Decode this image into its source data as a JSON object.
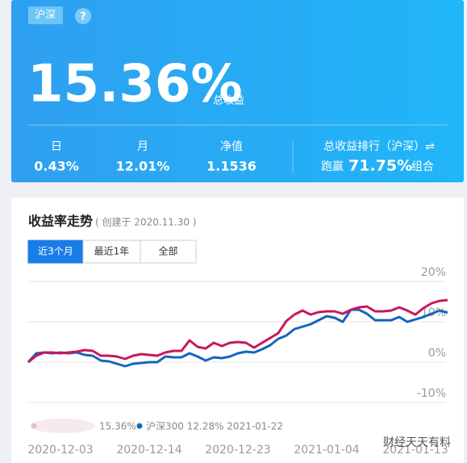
{
  "header": {
    "tag": "沪深",
    "help": "?",
    "total_return": "15.36%",
    "total_return_label": "总收益",
    "stats": [
      {
        "label": "日",
        "value": "0.43%"
      },
      {
        "label": "月",
        "value": "12.01%"
      },
      {
        "label": "净值",
        "value": "1.1536"
      }
    ],
    "rank": {
      "label": "总收益排行（沪深）⇌",
      "prefix": "跑赢",
      "value": "71.75%",
      "suffix": "组合"
    }
  },
  "section": {
    "title": "收益率走势",
    "subtitle": "( 创建于 2020.11.30 )",
    "tabs": [
      {
        "label": "近3个月",
        "selected": true
      },
      {
        "label": "最近1年",
        "selected": false
      },
      {
        "label": "全部",
        "selected": false
      }
    ]
  },
  "chart_data": {
    "type": "line",
    "categories": [
      null,
      null,
      null,
      null,
      "2020-12-03",
      null,
      null,
      null,
      null,
      null,
      null,
      null,
      null,
      null,
      null,
      "2020-12-14",
      null,
      null,
      null,
      null,
      null,
      null,
      null,
      null,
      null,
      null,
      "2020-12-23",
      null,
      null,
      null,
      null,
      null,
      null,
      null,
      null,
      null,
      null,
      "2021-01-04",
      null,
      null,
      null,
      null,
      null,
      null,
      null,
      null,
      null,
      null,
      "2021-01-13",
      null,
      null,
      null,
      null
    ],
    "series": [
      {
        "color": "#c8175d",
        "values": [
          0.0,
          1.6,
          2.4,
          2.4,
          2.2,
          2.4,
          2.6,
          3.0,
          2.8,
          1.6,
          1.6,
          1.4,
          0.8,
          1.6,
          2.0,
          1.8,
          1.6,
          2.4,
          2.8,
          2.8,
          5.4,
          3.8,
          3.4,
          4.8,
          4.0,
          4.8,
          5.0,
          4.8,
          3.6,
          4.8,
          6.0,
          7.2,
          10.2,
          11.8,
          12.8,
          11.8,
          12.4,
          12.6,
          12.6,
          12.0,
          13.0,
          13.6,
          13.8,
          12.6,
          12.6,
          12.8,
          13.6,
          12.8,
          11.8,
          13.4,
          14.6,
          15.2,
          15.4
        ]
      },
      {
        "name": "沪深300",
        "color": "#1565c0",
        "values": [
          0.0,
          2.2,
          2.4,
          2.2,
          2.4,
          2.2,
          2.4,
          1.8,
          1.6,
          0.4,
          0.2,
          -0.4,
          -1.0,
          -0.4,
          -0.2,
          0.0,
          0.0,
          1.4,
          1.2,
          1.2,
          2.2,
          1.4,
          0.4,
          1.2,
          1.0,
          1.4,
          2.2,
          2.6,
          2.4,
          3.2,
          4.2,
          5.8,
          6.6,
          8.2,
          8.8,
          9.4,
          10.4,
          11.4,
          11.0,
          10.0,
          13.0,
          13.0,
          12.0,
          10.4,
          10.4,
          10.4,
          11.2,
          10.0,
          10.6,
          11.2,
          12.0,
          12.8,
          12.3
        ]
      }
    ],
    "legend": [
      "15.36%",
      "沪深300 12.28% 2021-01-22"
    ],
    "ylim": [
      -10,
      20
    ],
    "yticks": [
      {
        "value": 20,
        "label": "20%"
      },
      {
        "value": 10,
        "label": "10%"
      },
      {
        "value": 0,
        "label": "0%"
      },
      {
        "value": -10,
        "label": "-10%"
      }
    ],
    "grid": true
  },
  "watermark": "财经天天有料"
}
